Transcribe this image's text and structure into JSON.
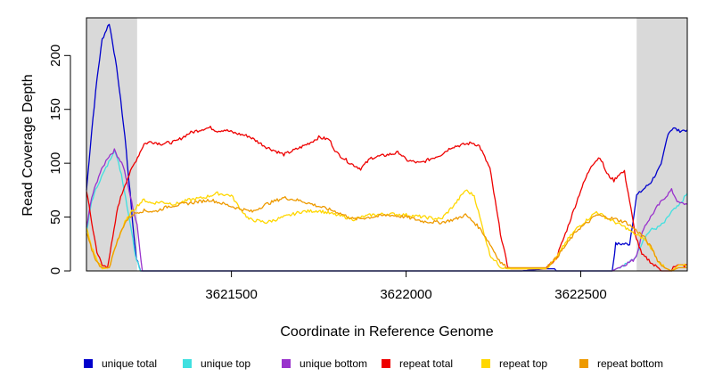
{
  "chart_data": {
    "type": "line",
    "xlabel": "Coordinate in Reference Genome",
    "ylabel": "Read Coverage Depth",
    "xlim": [
      3621085,
      3622805
    ],
    "ylim": [
      0,
      235
    ],
    "x_ticks": [
      3621500,
      3622000,
      3622500
    ],
    "x_tick_labels": [
      "3621500",
      "3622000",
      "3622500"
    ],
    "y_ticks": [
      0,
      50,
      100,
      150,
      200
    ],
    "y_tick_labels": [
      "0",
      "50",
      "100",
      "150",
      "200"
    ],
    "shaded_regions": [
      [
        3621085,
        3621230
      ],
      [
        3622660,
        3622805
      ]
    ],
    "shade_color": "#d9d9d9",
    "grid": false,
    "legend_position": "bottom",
    "series": [
      {
        "name": "unique total",
        "color": "#0000cc",
        "x": [
          3621085,
          3621100,
          3621115,
          3621130,
          3621150,
          3621160,
          3621175,
          3621195,
          3621210,
          3621220,
          3621228,
          3621240,
          3621260,
          3621300,
          3622330,
          3622400,
          3622425,
          3622430,
          3622590,
          3622600,
          3622640,
          3622660,
          3622700,
          3622730,
          3622750,
          3622765,
          3622780,
          3622805
        ],
        "y": [
          75,
          130,
          178,
          215,
          230,
          212,
          180,
          125,
          72,
          35,
          12,
          0,
          0,
          0,
          0,
          2,
          2,
          0,
          0,
          25,
          25,
          70,
          82,
          98,
          128,
          133,
          130,
          131
        ]
      },
      {
        "name": "unique top",
        "color": "#40e0e0",
        "x": [
          3621085,
          3621100,
          3621120,
          3621145,
          3621165,
          3621185,
          3621210,
          3621225,
          3621240,
          3621300,
          3622590,
          3622620,
          3622650,
          3622660,
          3622680,
          3622700,
          3622720,
          3622740,
          3622760,
          3622780,
          3622805
        ],
        "y": [
          35,
          65,
          82,
          98,
          113,
          90,
          45,
          15,
          0,
          0,
          0,
          5,
          10,
          15,
          30,
          38,
          40,
          45,
          55,
          60,
          72
        ]
      },
      {
        "name": "unique bottom",
        "color": "#9932cc",
        "x": [
          3621085,
          3621100,
          3621120,
          3621145,
          3621165,
          3621190,
          3621210,
          3621230,
          3621245,
          3621300,
          3622590,
          3622620,
          3622650,
          3622660,
          3622680,
          3622700,
          3622720,
          3622740,
          3622760,
          3622780,
          3622805
        ],
        "y": [
          40,
          68,
          88,
          105,
          112,
          98,
          70,
          42,
          0,
          0,
          0,
          5,
          10,
          15,
          40,
          50,
          60,
          68,
          75,
          63,
          62
        ]
      },
      {
        "name": "repeat total",
        "color": "#ee0000",
        "x": [
          3621085,
          3621100,
          3621115,
          3621130,
          3621145,
          3621160,
          3621175,
          3621195,
          3621215,
          3621235,
          3621250,
          3621270,
          3621300,
          3621340,
          3621380,
          3621420,
          3621440,
          3621460,
          3621480,
          3621510,
          3621550,
          3621600,
          3621650,
          3621700,
          3621730,
          3621750,
          3621780,
          3621800,
          3621840,
          3621870,
          3621900,
          3621950,
          3621980,
          3622000,
          3622040,
          3622070,
          3622100,
          3622130,
          3622160,
          3622190,
          3622210,
          3622240,
          3622270,
          3622290,
          3622300,
          3622400,
          3622430,
          3622460,
          3622500,
          3622530,
          3622555,
          3622575,
          3622595,
          3622610,
          3622625,
          3622640,
          3622655,
          3622675,
          3622695,
          3622710,
          3622720,
          3622730,
          3622760,
          3622765,
          3622805
        ],
        "y": [
          75,
          45,
          18,
          5,
          4,
          30,
          60,
          80,
          95,
          108,
          118,
          120,
          118,
          120,
          128,
          132,
          133,
          130,
          131,
          128,
          125,
          115,
          108,
          115,
          120,
          124,
          122,
          110,
          100,
          95,
          105,
          108,
          110,
          103,
          100,
          104,
          108,
          115,
          117,
          119,
          116,
          95,
          35,
          5,
          2,
          2,
          12,
          38,
          75,
          98,
          106,
          90,
          84,
          90,
          92,
          65,
          35,
          15,
          10,
          5,
          4,
          0,
          0,
          5,
          5
        ]
      },
      {
        "name": "repeat top",
        "color": "#ffd700",
        "x": [
          3621085,
          3621100,
          3621115,
          3621130,
          3621150,
          3621170,
          3621195,
          3621215,
          3621235,
          3621250,
          3621270,
          3621300,
          3621340,
          3621380,
          3621420,
          3621460,
          3621500,
          3621520,
          3621550,
          3621600,
          3621650,
          3621700,
          3621750,
          3621800,
          3621850,
          3621900,
          3621950,
          3622000,
          3622050,
          3622100,
          3622140,
          3622170,
          3622195,
          3622215,
          3622240,
          3622270,
          3622290,
          3622300,
          3622400,
          3622430,
          3622460,
          3622490,
          3622520,
          3622545,
          3622570,
          3622600,
          3622630,
          3622650,
          3622680,
          3622705,
          3622720,
          3622740,
          3622760,
          3622780,
          3622805
        ],
        "y": [
          40,
          22,
          10,
          2,
          3,
          25,
          45,
          55,
          62,
          66,
          63,
          64,
          62,
          66,
          68,
          72,
          70,
          60,
          48,
          45,
          50,
          55,
          56,
          52,
          48,
          52,
          53,
          52,
          50,
          48,
          62,
          75,
          70,
          45,
          15,
          4,
          2,
          2,
          2,
          12,
          28,
          40,
          48,
          55,
          50,
          45,
          40,
          35,
          30,
          20,
          10,
          3,
          0,
          5,
          5
        ]
      },
      {
        "name": "repeat bottom",
        "color": "#ee9a00",
        "x": [
          3621085,
          3621100,
          3621115,
          3621130,
          3621150,
          3621170,
          3621195,
          3621215,
          3621235,
          3621250,
          3621280,
          3621320,
          3621360,
          3621400,
          3621440,
          3621480,
          3621520,
          3621560,
          3621600,
          3621650,
          3621700,
          3621750,
          3621800,
          3621850,
          3621900,
          3621950,
          3622000,
          3622050,
          3622100,
          3622140,
          3622170,
          3622195,
          3622215,
          3622240,
          3622270,
          3622290,
          3622300,
          3622400,
          3622430,
          3622460,
          3622490,
          3622520,
          3622545,
          3622570,
          3622600,
          3622630,
          3622650,
          3622680,
          3622705,
          3622720,
          3622740,
          3622760,
          3622780,
          3622805
        ],
        "y": [
          35,
          20,
          8,
          3,
          3,
          25,
          45,
          52,
          55,
          56,
          55,
          60,
          62,
          64,
          66,
          62,
          58,
          55,
          62,
          68,
          65,
          60,
          55,
          48,
          50,
          52,
          50,
          46,
          45,
          48,
          52,
          45,
          38,
          25,
          8,
          3,
          3,
          3,
          12,
          25,
          38,
          45,
          52,
          50,
          48,
          45,
          40,
          32,
          20,
          10,
          3,
          0,
          3,
          3
        ]
      }
    ]
  }
}
